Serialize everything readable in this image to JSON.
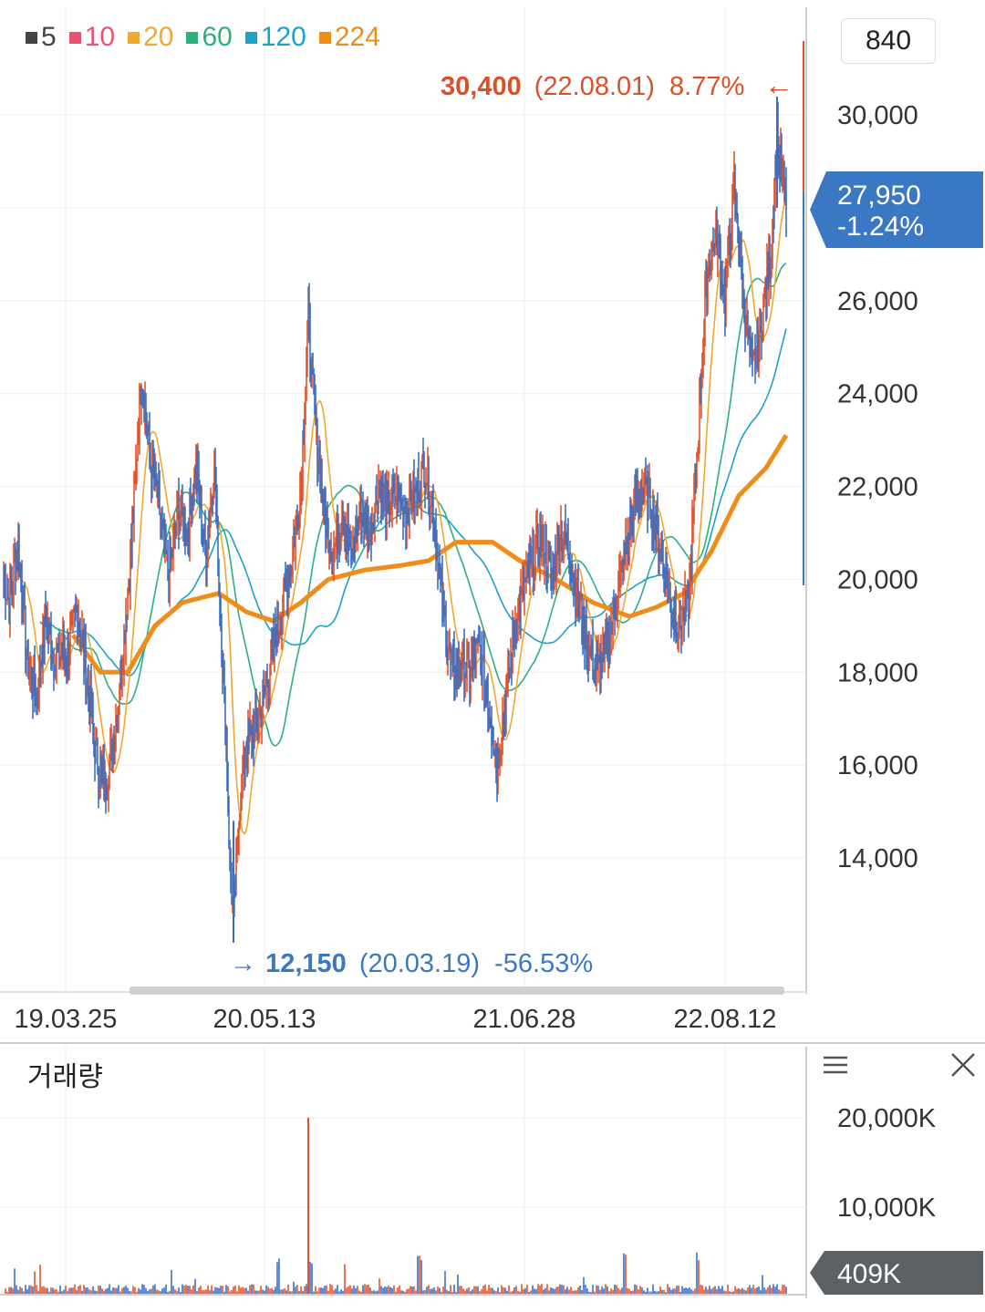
{
  "legend": [
    {
      "label": "5",
      "color": "#444444"
    },
    {
      "label": "10",
      "color": "#e8546f"
    },
    {
      "label": "20",
      "color": "#f0a830"
    },
    {
      "label": "60",
      "color": "#2fb07a"
    },
    {
      "label": "120",
      "color": "#1aa3c8"
    },
    {
      "label": "224",
      "color": "#f08c1a"
    }
  ],
  "top_badge": "840",
  "annotations": {
    "high": {
      "value": "30,400",
      "date": "(22.08.01)",
      "pct": "8.77%",
      "arrow": "←"
    },
    "low": {
      "value": "12,150",
      "date": "(20.03.19)",
      "pct": "-56.53%",
      "arrow": "→"
    }
  },
  "current_price": {
    "value": "27,950",
    "change": "-1.24%"
  },
  "volume": {
    "title": "거래량",
    "current": "409K"
  },
  "chart_data": {
    "type": "line",
    "y_ticks": [
      "30,000",
      "26,000",
      "24,000",
      "22,000",
      "20,000",
      "18,000",
      "16,000",
      "14,000"
    ],
    "x_ticks": [
      "19.03.25",
      "20.05.13",
      "21.06.28",
      "22.08.12"
    ],
    "ylim": [
      12150,
      30400
    ],
    "price_anchors": [
      [
        0,
        20500
      ],
      [
        10,
        19500
      ],
      [
        20,
        20800
      ],
      [
        30,
        18200
      ],
      [
        40,
        17500
      ],
      [
        50,
        19200
      ],
      [
        60,
        18300
      ],
      [
        75,
        18500
      ],
      [
        85,
        19400
      ],
      [
        95,
        18000
      ],
      [
        105,
        16200
      ],
      [
        115,
        15500
      ],
      [
        125,
        16500
      ],
      [
        135,
        18500
      ],
      [
        145,
        21000
      ],
      [
        155,
        24500
      ],
      [
        165,
        22500
      ],
      [
        175,
        21500
      ],
      [
        185,
        20000
      ],
      [
        195,
        21500
      ],
      [
        205,
        21000
      ],
      [
        215,
        22500
      ],
      [
        225,
        20500
      ],
      [
        235,
        22500
      ],
      [
        242,
        19000
      ],
      [
        248,
        16500
      ],
      [
        252,
        14000
      ],
      [
        256,
        12600
      ],
      [
        262,
        15000
      ],
      [
        270,
        16500
      ],
      [
        280,
        16800
      ],
      [
        290,
        17500
      ],
      [
        300,
        18500
      ],
      [
        310,
        19500
      ],
      [
        320,
        20500
      ],
      [
        330,
        22000
      ],
      [
        338,
        25500
      ],
      [
        345,
        23500
      ],
      [
        355,
        21500
      ],
      [
        365,
        20500
      ],
      [
        375,
        21500
      ],
      [
        385,
        20500
      ],
      [
        395,
        21500
      ],
      [
        405,
        21000
      ],
      [
        415,
        22000
      ],
      [
        425,
        21500
      ],
      [
        435,
        21800
      ],
      [
        445,
        21500
      ],
      [
        455,
        21800
      ],
      [
        465,
        22500
      ],
      [
        475,
        21500
      ],
      [
        485,
        19500
      ],
      [
        495,
        18000
      ],
      [
        505,
        18200
      ],
      [
        515,
        18000
      ],
      [
        525,
        18500
      ],
      [
        535,
        17500
      ],
      [
        545,
        16000
      ],
      [
        555,
        17500
      ],
      [
        565,
        19000
      ],
      [
        575,
        19800
      ],
      [
        585,
        20500
      ],
      [
        595,
        20800
      ],
      [
        605,
        20000
      ],
      [
        615,
        21000
      ],
      [
        625,
        20500
      ],
      [
        635,
        19500
      ],
      [
        645,
        18500
      ],
      [
        655,
        18000
      ],
      [
        665,
        18500
      ],
      [
        675,
        19500
      ],
      [
        685,
        20500
      ],
      [
        695,
        21500
      ],
      [
        705,
        22000
      ],
      [
        715,
        21500
      ],
      [
        725,
        20500
      ],
      [
        735,
        19500
      ],
      [
        745,
        19000
      ],
      [
        755,
        19500
      ],
      [
        765,
        23000
      ],
      [
        775,
        26500
      ],
      [
        785,
        27500
      ],
      [
        795,
        26000
      ],
      [
        805,
        28500
      ],
      [
        815,
        26000
      ],
      [
        825,
        24500
      ],
      [
        835,
        25500
      ],
      [
        845,
        27000
      ],
      [
        852,
        29500
      ],
      [
        858,
        28500
      ],
      [
        862,
        27950
      ]
    ],
    "ma224_anchors": [
      [
        80,
        18800
      ],
      [
        110,
        18000
      ],
      [
        140,
        18000
      ],
      [
        170,
        19000
      ],
      [
        200,
        19500
      ],
      [
        240,
        19700
      ],
      [
        270,
        19300
      ],
      [
        300,
        19100
      ],
      [
        330,
        19500
      ],
      [
        360,
        20000
      ],
      [
        400,
        20200
      ],
      [
        440,
        20300
      ],
      [
        470,
        20400
      ],
      [
        500,
        20800
      ],
      [
        540,
        20800
      ],
      [
        570,
        20400
      ],
      [
        610,
        20000
      ],
      [
        650,
        19500
      ],
      [
        690,
        19200
      ],
      [
        720,
        19400
      ],
      [
        750,
        19700
      ],
      [
        780,
        20600
      ],
      [
        810,
        21800
      ],
      [
        840,
        22400
      ],
      [
        862,
        23100
      ]
    ],
    "volume_spike": {
      "x": 338,
      "value": 20000
    }
  }
}
